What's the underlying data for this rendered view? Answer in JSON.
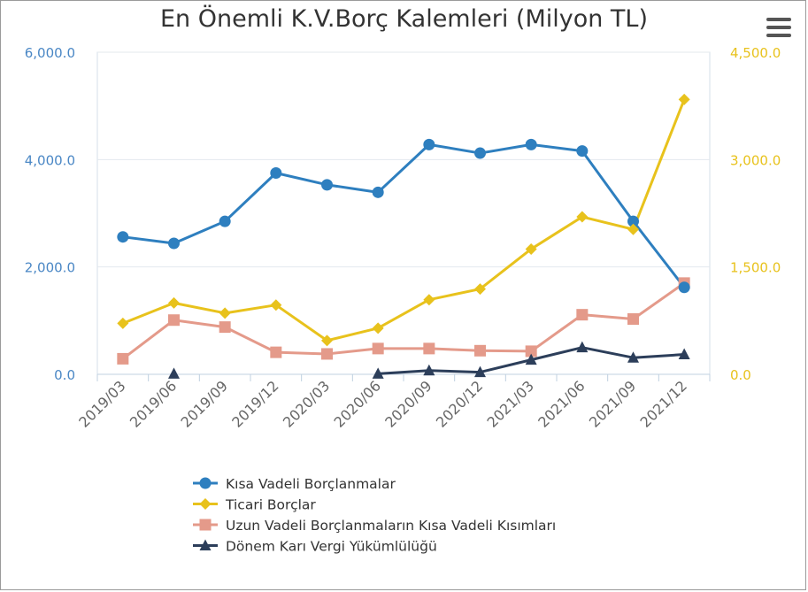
{
  "chart_data": {
    "type": "line",
    "title": "En Önemli K.V.Borç Kalemleri (Milyon TL)",
    "categories": [
      "2019/03",
      "2019/06",
      "2019/09",
      "2019/12",
      "2020/03",
      "2020/06",
      "2020/09",
      "2020/12",
      "2021/03",
      "2021/06",
      "2021/09",
      "2021/12"
    ],
    "y_left": {
      "ylim": [
        0,
        6000
      ],
      "ticks": [
        "0.0",
        "2,000.0",
        "4,000.0",
        "6,000.0"
      ],
      "tick_values": [
        0,
        2000,
        4000,
        6000
      ],
      "color": "#4a87c5"
    },
    "y_right": {
      "ylim": [
        0,
        4500
      ],
      "ticks": [
        "0.0",
        "1,500.0",
        "3,000.0",
        "4,500.0"
      ],
      "tick_values": [
        0,
        1500,
        3000,
        4500
      ],
      "color": "#e8c21c"
    },
    "grid": true,
    "legend_position": "bottom",
    "series": [
      {
        "name": "Kısa Vadeli Borçlanmalar",
        "axis": "left",
        "color": "#2e7fbf",
        "marker": "circle",
        "values": [
          2560,
          2440,
          2850,
          3750,
          3530,
          3390,
          4280,
          4120,
          4280,
          4160,
          2850,
          1620
        ]
      },
      {
        "name": "Ticari Borçlar",
        "axis": "right",
        "color": "#e8c21c",
        "marker": "diamond",
        "values": [
          712,
          997,
          855,
          968,
          472,
          645,
          1042,
          1192,
          1750,
          2200,
          2025,
          3840
        ]
      },
      {
        "name": "Uzun Vadeli Borçlanmaların Kısa Vadeli Kısımları",
        "axis": "left",
        "color": "#e49a8a",
        "marker": "square",
        "values": [
          290,
          1010,
          880,
          410,
          380,
          480,
          480,
          440,
          430,
          1110,
          1030,
          1700
        ]
      },
      {
        "name": "Dönem Karı Vergi Yükümlülüğü",
        "axis": "left",
        "color": "#2c3e5a",
        "marker": "triangle",
        "values": [
          null,
          10,
          null,
          null,
          null,
          10,
          70,
          40,
          270,
          500,
          310,
          370
        ]
      }
    ]
  }
}
